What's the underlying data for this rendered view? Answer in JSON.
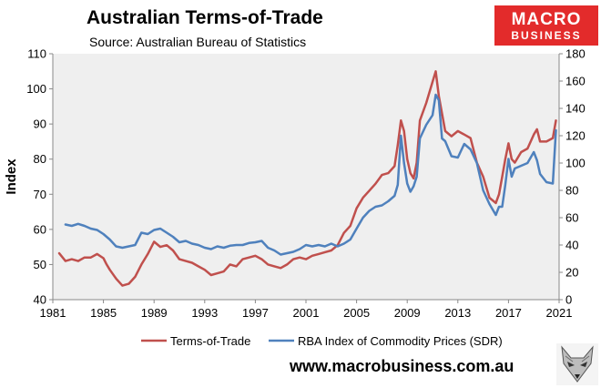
{
  "title": "Australian Terms-of-Trade",
  "subtitle": "Source: Australian Bureau of Statistics",
  "logo": {
    "line1": "MACRO",
    "line2": "BUSINESS"
  },
  "website": "www.macrobusiness.com.au",
  "mascot_icon": "fox-icon",
  "colors": {
    "tot": "#c0504d",
    "rba": "#4f81bd",
    "plot_bg": "#efefef"
  },
  "chart_data": {
    "type": "line",
    "title": "Australian Terms-of-Trade",
    "subtitle": "Source: Australian Bureau of Statistics",
    "ylabel": "Index",
    "xlabel": "",
    "xlim": [
      1981,
      2021
    ],
    "ylim": [
      40,
      110
    ],
    "y2lim": [
      0,
      180
    ],
    "xticks": [
      "1981",
      "1985",
      "1989",
      "1993",
      "1997",
      "2001",
      "2005",
      "2009",
      "2013",
      "2017",
      "2021"
    ],
    "yticks": [
      "40",
      "50",
      "60",
      "70",
      "80",
      "90",
      "100",
      "110"
    ],
    "y2ticks": [
      "0",
      "20",
      "40",
      "60",
      "80",
      "100",
      "120",
      "140",
      "160",
      "180"
    ],
    "grid": false,
    "legend_position": "bottom",
    "series": [
      {
        "name": "Terms-of-Trade",
        "axis": "left",
        "color": "#c0504d",
        "x": [
          1981.5,
          1982,
          1982.5,
          1983,
          1983.5,
          1984,
          1984.5,
          1985,
          1985.25,
          1985.5,
          1986,
          1986.5,
          1987,
          1987.5,
          1988,
          1988.5,
          1989,
          1989.5,
          1990,
          1990.5,
          1991,
          1991.5,
          1992,
          1992.5,
          1993,
          1993.5,
          1994,
          1994.5,
          1995,
          1995.5,
          1996,
          1996.5,
          1997,
          1997.5,
          1998,
          1998.5,
          1999,
          1999.5,
          2000,
          2000.5,
          2001,
          2001.5,
          2002,
          2002.5,
          2003,
          2003.5,
          2004,
          2004.5,
          2005,
          2005.5,
          2006,
          2006.5,
          2007,
          2007.5,
          2008,
          2008.25,
          2008.5,
          2008.75,
          2009,
          2009.25,
          2009.5,
          2009.75,
          2010,
          2010.5,
          2011,
          2011.25,
          2011.5,
          2011.75,
          2012,
          2012.5,
          2013,
          2013.5,
          2014,
          2014.5,
          2015,
          2015.5,
          2016,
          2016.25,
          2016.5,
          2016.75,
          2017,
          2017.25,
          2017.5,
          2018,
          2018.5,
          2019,
          2019.25,
          2019.5,
          2020,
          2020.5,
          2020.75
        ],
        "y": [
          53.2,
          51,
          51.5,
          51,
          52,
          52,
          53,
          51.8,
          50,
          48.5,
          46,
          44,
          44.5,
          46.5,
          50,
          53,
          56.5,
          55,
          55.5,
          54,
          51.5,
          51,
          50.5,
          49.5,
          48.5,
          47,
          47.5,
          48,
          50,
          49.5,
          51.5,
          52,
          52.5,
          51.5,
          50,
          49.5,
          49,
          50,
          51.5,
          52,
          51.5,
          52.5,
          53,
          53.5,
          54,
          55.5,
          59,
          61,
          66,
          69,
          71,
          73,
          75.5,
          76,
          78,
          84,
          91,
          88,
          80,
          76,
          74.5,
          79,
          91,
          96,
          102,
          105,
          98,
          93,
          88,
          86.5,
          88,
          87,
          86,
          79,
          75,
          69,
          67.5,
          70,
          75,
          80,
          84.5,
          80,
          79,
          82,
          83,
          87,
          88.5,
          85,
          85,
          86,
          91
        ]
      },
      {
        "name": "RBA Index of Commodity Prices (SDR)",
        "axis": "right",
        "color": "#4f81bd",
        "x": [
          1982,
          1982.5,
          1983,
          1983.5,
          1984,
          1984.5,
          1985,
          1985.5,
          1986,
          1986.5,
          1987,
          1987.5,
          1988,
          1988.5,
          1989,
          1989.5,
          1990,
          1990.5,
          1991,
          1991.5,
          1992,
          1992.5,
          1993,
          1993.5,
          1994,
          1994.5,
          1995,
          1995.5,
          1996,
          1996.5,
          1997,
          1997.5,
          1998,
          1998.5,
          1999,
          1999.5,
          2000,
          2000.5,
          2001,
          2001.5,
          2002,
          2002.5,
          2003,
          2003.5,
          2004,
          2004.5,
          2005,
          2005.5,
          2006,
          2006.5,
          2007,
          2007.5,
          2008,
          2008.25,
          2008.5,
          2008.75,
          2009,
          2009.25,
          2009.5,
          2009.75,
          2010,
          2010.5,
          2011,
          2011.25,
          2011.5,
          2011.75,
          2012,
          2012.5,
          2013,
          2013.5,
          2014,
          2014.5,
          2015,
          2015.5,
          2016,
          2016.25,
          2016.5,
          2016.75,
          2017,
          2017.25,
          2017.5,
          2018,
          2018.5,
          2019,
          2019.25,
          2019.5,
          2020,
          2020.5,
          2020.75
        ],
        "y": [
          55,
          54,
          55.5,
          54,
          52,
          51,
          48,
          44,
          39,
          38,
          39,
          40,
          49,
          48,
          51,
          52,
          49,
          46,
          42,
          43,
          41,
          40,
          38,
          37,
          39,
          38,
          39.5,
          40,
          40,
          41.5,
          42,
          43,
          38,
          36,
          33,
          34,
          35,
          37,
          40,
          39,
          40,
          39,
          41,
          39,
          41,
          44,
          52,
          60,
          65,
          68,
          69,
          72,
          76,
          84,
          120,
          100,
          85,
          79,
          83,
          90,
          118,
          128,
          135,
          150,
          146,
          118,
          116,
          105,
          104,
          114,
          110,
          100,
          80,
          70,
          62,
          68,
          68,
          84,
          103,
          90,
          96,
          98,
          100,
          108,
          102,
          92,
          86,
          85,
          124
        ]
      }
    ]
  }
}
